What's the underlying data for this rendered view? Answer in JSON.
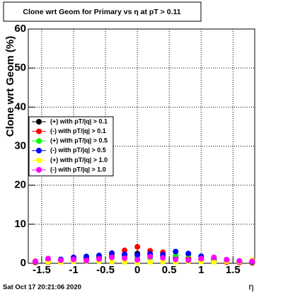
{
  "chart_data": {
    "type": "scatter",
    "title": "Clone wrt Geom for Primary vs   η at pT > 0.11",
    "y_label": "Clone wrt Geom (%)",
    "x_label": "η",
    "timestamp": "Sat Oct 17 20:21:06 2020",
    "xlim": [
      -1.71,
      1.84
    ],
    "ylim": [
      0,
      60
    ],
    "xticks": [
      -1.5,
      -1,
      -0.5,
      0,
      0.5,
      1,
      1.5
    ],
    "yticks": [
      0,
      10,
      20,
      30,
      40,
      50,
      60
    ],
    "grid": true,
    "legend": "left",
    "x": [
      -1.6,
      -1.4,
      -1.2,
      -1.0,
      -0.8,
      -0.6,
      -0.4,
      -0.2,
      0,
      0.2,
      0.4,
      0.6,
      0.8,
      1.0,
      1.2,
      1.4,
      1.6,
      1.8
    ],
    "series": [
      {
        "name": "(+) with pT/|q| > 0.1",
        "color": "#000000",
        "values": [
          0.3,
          0.5,
          0.8,
          1.0,
          1.2,
          1.5,
          1.8,
          2.0,
          2.5,
          2.2,
          1.8,
          1.5,
          1.2,
          1.0,
          0.8,
          0.5,
          0.3,
          0.2
        ]
      },
      {
        "name": "(-) with pT/|q| > 0.1",
        "color": "#ff0000",
        "values": [
          0.2,
          0.3,
          0.5,
          0.8,
          1.0,
          1.5,
          2.5,
          3.3,
          4.2,
          3.2,
          2.8,
          2.0,
          1.2,
          0.8,
          0.5,
          0.3,
          0.2,
          0.1
        ]
      },
      {
        "name": "(+) with pT/|q| > 0.5",
        "color": "#00ff00",
        "values": [
          0.4,
          0.6,
          0.9,
          1.3,
          1.8,
          2.0,
          1.6,
          1.5,
          1.2,
          1.4,
          1.9,
          2.1,
          2.2,
          1.8,
          1.1,
          0.8,
          0.5,
          0.3
        ]
      },
      {
        "name": "(-) with pT/|q| > 0.5",
        "color": "#0000ff",
        "values": [
          0.5,
          0.7,
          1.0,
          1.5,
          1.7,
          2.0,
          2.6,
          2.3,
          2.1,
          2.4,
          2.2,
          3.0,
          2.5,
          1.8,
          1.3,
          0.9,
          0.6,
          0.4
        ]
      },
      {
        "name": "(+) with pT/|q| > 1.0",
        "color": "#ffff00",
        "values": [
          0.6,
          0.4,
          0.3,
          0.5,
          0.6,
          0.5,
          0.4,
          0.3,
          0.2,
          0.3,
          0.4,
          0.3,
          0.5,
          0.4,
          0.3,
          0.5,
          0.4,
          0.8
        ]
      },
      {
        "name": "(-) with pT/|q| > 1.0",
        "color": "#ff00ff",
        "values": [
          0.5,
          1.2,
          0.8,
          1.0,
          0.7,
          1.1,
          1.5,
          1.3,
          0.9,
          1.7,
          1.4,
          1.0,
          0.8,
          1.2,
          1.5,
          0.9,
          0.6,
          0.5
        ]
      }
    ]
  }
}
